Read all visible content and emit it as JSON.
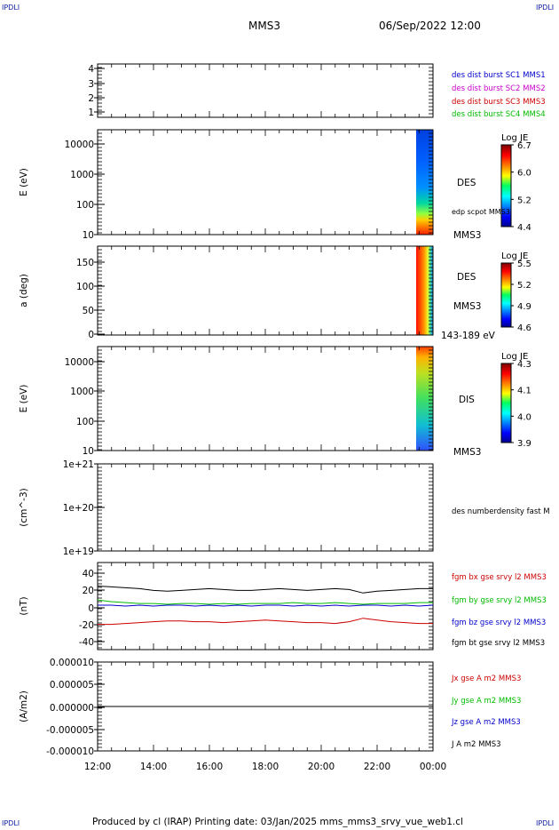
{
  "corner_label": "IPDLI",
  "header": {
    "spacecraft": "MMS3",
    "datetime": "06/Sep/2022 12:00"
  },
  "footer": "Produced by cl (IRAP)   Printing date: 03/Jan/2025   mms_mms3_srvy_vue_web1.cl",
  "chart_data": [
    {
      "type": "line",
      "name_panel": "panel-dist-burst",
      "yticks": [
        "4",
        "3",
        "2",
        "1"
      ],
      "ylim": [
        0.5,
        4.5
      ],
      "legend": [
        {
          "text": "des dist burst SC1 MMS1",
          "color": "#0000cc"
        },
        {
          "text": "des dist burst SC2 MMS2",
          "color": "#cc00cc"
        },
        {
          "text": "des dist burst SC3 MMS3",
          "color": "#cc0000"
        },
        {
          "text": "des dist burst SC4 MMS4",
          "color": "#00bb00"
        }
      ]
    },
    {
      "type": "heatmap",
      "name_panel": "panel-des-energy",
      "ylabel": "E (eV)",
      "yticks": [
        "10000",
        "1000",
        "100",
        "10"
      ],
      "yscale": "log",
      "ylim": [
        10,
        30000
      ],
      "labels": [
        "DES",
        "edp scpot MMS3",
        "MMS3"
      ],
      "colorbar": {
        "title": "Log JE",
        "ticks": [
          "6.7",
          "6.0",
          "5.2",
          "4.4"
        ],
        "range": [
          4.4,
          6.7
        ]
      }
    },
    {
      "type": "heatmap",
      "name_panel": "panel-des-pitch",
      "ylabel": "a (deg)",
      "yticks": [
        "150",
        "100",
        "50",
        "0"
      ],
      "ylim": [
        0,
        180
      ],
      "labels": [
        "DES",
        "MMS3",
        "143-189 eV"
      ],
      "colorbar": {
        "title": "Log JE",
        "ticks": [
          "5.5",
          "5.2",
          "4.9",
          "4.6"
        ],
        "range": [
          4.6,
          5.5
        ]
      }
    },
    {
      "type": "heatmap",
      "name_panel": "panel-dis-energy",
      "ylabel": "E (eV)",
      "yticks": [
        "10000",
        "1000",
        "100",
        "10"
      ],
      "yscale": "log",
      "ylim": [
        10,
        30000
      ],
      "labels": [
        "DIS",
        "MMS3"
      ],
      "colorbar": {
        "title": "Log JE",
        "ticks": [
          "4.3",
          "4.1",
          "4.0",
          "3.9"
        ],
        "range": [
          3.9,
          4.3
        ]
      }
    },
    {
      "type": "line",
      "name_panel": "panel-density",
      "ylabel": "(cm^-3)",
      "yticks": [
        "1e+21",
        "1e+20",
        "1e+19"
      ],
      "yscale": "log",
      "ylim": [
        1e+19,
        1e+21
      ],
      "legend": [
        {
          "text": "des numberdensity fast M",
          "color": "#000000"
        }
      ]
    },
    {
      "type": "line",
      "name_panel": "panel-fgm",
      "ylabel": "(nT)",
      "yticks": [
        "40",
        "20",
        "0",
        "-20",
        "-40"
      ],
      "ylim": [
        -50,
        50
      ],
      "legend": [
        {
          "text": "fgm bx gse srvy l2 MMS3",
          "color": "#cc0000"
        },
        {
          "text": "fgm by gse srvy l2 MMS3",
          "color": "#00bb00"
        },
        {
          "text": "fgm bz gse srvy l2 MMS3",
          "color": "#0000cc"
        },
        {
          "text": "fgm bt gse srvy l2 MMS3",
          "color": "#000000"
        }
      ],
      "x": [
        12,
        12.5,
        13,
        13.5,
        14,
        14.5,
        15,
        15.5,
        16,
        16.5,
        17,
        17.5,
        18,
        18.5,
        19,
        19.5,
        20,
        20.5,
        21,
        21.5,
        22,
        22.5,
        23,
        23.5,
        24
      ],
      "series": [
        {
          "name": "fgm bt gse srvy l2 MMS3",
          "color": "#000000",
          "values": [
            23,
            22,
            21,
            20,
            18,
            17,
            18,
            19,
            20,
            19,
            18,
            18,
            19,
            20,
            19,
            18,
            19,
            20,
            19,
            15,
            17,
            18,
            19,
            20,
            20
          ]
        },
        {
          "name": "fgm by gse srvy l2 MMS3",
          "color": "#00bb00",
          "values": [
            7,
            5,
            4,
            3,
            3,
            2,
            3,
            3,
            2,
            3,
            2,
            3,
            3,
            3,
            4,
            3,
            3,
            4,
            3,
            2,
            3,
            3,
            3,
            4,
            4
          ]
        },
        {
          "name": "fgm bz gse srvy l2 MMS3",
          "color": "#0000cc",
          "values": [
            1,
            1,
            0,
            1,
            0,
            1,
            1,
            0,
            1,
            0,
            1,
            0,
            1,
            1,
            0,
            1,
            0,
            1,
            0,
            1,
            1,
            0,
            1,
            0,
            1
          ]
        },
        {
          "name": "fgm bx gse srvy l2 MMS3",
          "color": "#cc0000",
          "values": [
            -21,
            -21,
            -20,
            -19,
            -18,
            -17,
            -17,
            -18,
            -18,
            -19,
            -18,
            -17,
            -16,
            -17,
            -18,
            -19,
            -19,
            -20,
            -18,
            -14,
            -16,
            -18,
            -19,
            -20,
            -20
          ]
        }
      ]
    },
    {
      "type": "line",
      "name_panel": "panel-current",
      "ylabel": "(A/m2)",
      "yticks": [
        "0.000010",
        "0.000005",
        "0.000000",
        "-0.000005",
        "-0.000010"
      ],
      "ylim": [
        -1e-05,
        1e-05
      ],
      "legend": [
        {
          "text": "Jx gse A m2 MMS3",
          "color": "#cc0000"
        },
        {
          "text": "Jy gse A m2 MMS3",
          "color": "#00bb00"
        },
        {
          "text": "Jz gse A m2 MMS3",
          "color": "#0000cc"
        },
        {
          "text": "J A m2 MMS3",
          "color": "#000000"
        }
      ],
      "x": [
        12,
        24
      ],
      "series": [
        {
          "name": "J A m2 MMS3",
          "color": "#000000",
          "values": [
            0,
            0
          ]
        }
      ]
    }
  ],
  "xaxis": {
    "ticks": [
      "12:00",
      "14:00",
      "16:00",
      "18:00",
      "20:00",
      "22:00",
      "00:00"
    ],
    "xlim": [
      12,
      24
    ]
  }
}
